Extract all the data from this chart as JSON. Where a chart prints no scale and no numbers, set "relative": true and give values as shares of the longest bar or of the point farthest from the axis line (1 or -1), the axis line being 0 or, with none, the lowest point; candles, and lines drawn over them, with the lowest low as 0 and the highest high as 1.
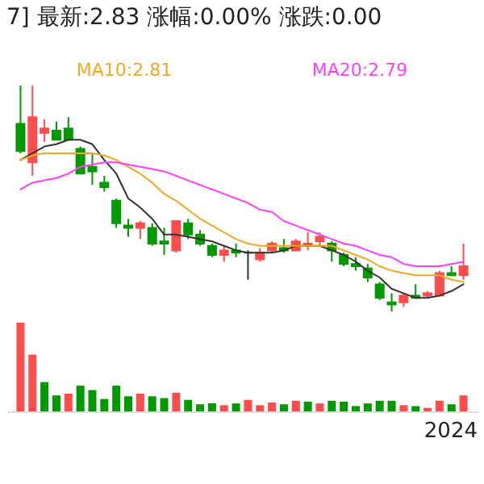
{
  "chart_data": [
    {
      "type": "candlestick",
      "title": "7]  最新:2.83  涨幅:0.00%  涨跌:0.00",
      "relative": true,
      "categories": [
        null,
        null,
        null,
        null,
        null,
        null,
        null,
        null,
        null,
        null,
        null,
        null,
        null,
        null,
        null,
        null,
        null,
        null,
        null,
        null,
        null,
        null,
        null,
        null,
        null,
        null,
        null,
        null,
        null,
        null,
        null,
        null,
        null,
        null,
        null,
        null,
        null,
        null
      ],
      "ohlc": [
        [
          0.83,
          1.0,
          0.7,
          0.71
        ],
        [
          0.66,
          1.0,
          0.6,
          0.86
        ],
        [
          0.79,
          0.85,
          0.75,
          0.81
        ],
        [
          0.8,
          0.84,
          0.76,
          0.76
        ],
        [
          0.81,
          0.86,
          0.76,
          0.76
        ],
        [
          0.72,
          0.73,
          0.61,
          0.61
        ],
        [
          0.64,
          0.7,
          0.56,
          0.62
        ],
        [
          0.57,
          0.6,
          0.53,
          0.55
        ],
        [
          0.49,
          0.5,
          0.37,
          0.39
        ],
        [
          0.38,
          0.41,
          0.33,
          0.37
        ],
        [
          0.37,
          0.4,
          0.32,
          0.39
        ],
        [
          0.37,
          0.39,
          0.29,
          0.3
        ],
        [
          0.31,
          0.37,
          0.25,
          0.3
        ],
        [
          0.27,
          0.4,
          0.26,
          0.4
        ],
        [
          0.39,
          0.41,
          0.32,
          0.34
        ],
        [
          0.34,
          0.36,
          0.29,
          0.3
        ],
        [
          0.29,
          0.3,
          0.24,
          0.25
        ],
        [
          0.25,
          0.29,
          0.22,
          0.27
        ],
        [
          0.27,
          0.3,
          0.24,
          0.26
        ],
        [
          0.26,
          0.27,
          0.14,
          0.26
        ],
        [
          0.23,
          0.28,
          0.22,
          0.26
        ],
        [
          0.27,
          0.31,
          0.26,
          0.3
        ],
        [
          0.28,
          0.32,
          0.26,
          0.27
        ],
        [
          0.27,
          0.32,
          0.27,
          0.31
        ],
        [
          0.29,
          0.35,
          0.27,
          0.3
        ],
        [
          0.31,
          0.35,
          0.29,
          0.33
        ],
        [
          0.3,
          0.31,
          0.22,
          0.27
        ],
        [
          0.25,
          0.26,
          0.2,
          0.21
        ],
        [
          0.21,
          0.24,
          0.18,
          0.2
        ],
        [
          0.19,
          0.21,
          0.13,
          0.15
        ],
        [
          0.12,
          0.13,
          0.05,
          0.06
        ],
        [
          0.04,
          0.08,
          0.0,
          0.03
        ],
        [
          0.04,
          0.08,
          0.02,
          0.07
        ],
        [
          0.07,
          0.12,
          0.06,
          0.06
        ],
        [
          0.07,
          0.09,
          0.06,
          0.08
        ],
        [
          0.07,
          0.18,
          0.07,
          0.17
        ],
        [
          0.17,
          0.2,
          0.16,
          0.16
        ],
        [
          0.16,
          0.3,
          0.14,
          0.2
        ]
      ],
      "colors": [
        "#009a00",
        "#ff4d4d",
        "#ff4d4d",
        "#009a00",
        "#009a00",
        "#009a00",
        "#009a00",
        "#009a00",
        "#009a00",
        "#009a00",
        "#ff4d4d",
        "#009a00",
        "#009a00",
        "#ff4d4d",
        "#009a00",
        "#009a00",
        "#009a00",
        "#ff4d4d",
        "#009a00",
        "#333333",
        "#ff4d4d",
        "#ff4d4d",
        "#009a00",
        "#ff4d4d",
        "#ff4d4d",
        "#ff4d4d",
        "#009a00",
        "#009a00",
        "#009a00",
        "#009a00",
        "#009a00",
        "#009a00",
        "#ff4d4d",
        "#009a00",
        "#ff4d4d",
        "#ff4d4d",
        "#009a00",
        "#ff4d4d"
      ],
      "series": [
        {
          "type": "line",
          "color": "#333333",
          "values": [
            0.67,
            0.7,
            0.73,
            0.74,
            0.76,
            0.76,
            0.74,
            0.67,
            0.61,
            0.5,
            0.46,
            0.41,
            0.34,
            0.34,
            0.33,
            0.32,
            0.31,
            0.29,
            0.27,
            0.26,
            0.26,
            0.26,
            0.27,
            0.29,
            0.29,
            0.29,
            0.27,
            0.25,
            0.22,
            0.18,
            0.15,
            0.1,
            0.08,
            0.06,
            0.06,
            0.07,
            0.09,
            0.12
          ]
        },
        {
          "type": "line",
          "name": "MA10:2.81",
          "color": "#f5a623",
          "values": [
            0.67,
            0.69,
            0.7,
            0.7,
            0.7,
            0.7,
            0.7,
            0.69,
            0.67,
            0.64,
            0.61,
            0.57,
            0.52,
            0.49,
            0.45,
            0.41,
            0.38,
            0.35,
            0.32,
            0.3,
            0.29,
            0.29,
            0.29,
            0.29,
            0.29,
            0.29,
            0.29,
            0.27,
            0.25,
            0.23,
            0.2,
            0.18,
            0.17,
            0.16,
            0.16,
            0.16,
            0.14,
            0.13
          ]
        },
        {
          "type": "line",
          "name": "MA20:2.79",
          "color": "#ff40ff",
          "values": [
            0.54,
            0.57,
            0.58,
            0.59,
            0.61,
            0.64,
            0.65,
            0.66,
            0.66,
            0.65,
            0.64,
            0.63,
            0.62,
            0.6,
            0.58,
            0.56,
            0.54,
            0.52,
            0.5,
            0.48,
            0.45,
            0.44,
            0.4,
            0.38,
            0.36,
            0.34,
            0.32,
            0.3,
            0.29,
            0.27,
            0.25,
            0.24,
            0.21,
            0.2,
            0.2,
            0.2,
            0.21,
            0.22
          ]
        }
      ]
    },
    {
      "type": "bar",
      "relative": true,
      "annotations": [
        "2024"
      ],
      "categories": [
        null,
        null,
        null,
        null,
        null,
        null,
        null,
        null,
        null,
        null,
        null,
        null,
        null,
        null,
        null,
        null,
        null,
        null,
        null,
        null,
        null,
        null,
        null,
        null,
        null,
        null,
        null,
        null,
        null,
        null,
        null,
        null,
        null,
        null,
        null,
        null,
        null,
        null
      ],
      "values": [
        1.0,
        0.64,
        0.33,
        0.18,
        0.2,
        0.29,
        0.24,
        0.14,
        0.29,
        0.17,
        0.2,
        0.17,
        0.15,
        0.21,
        0.13,
        0.08,
        0.09,
        0.07,
        0.09,
        0.13,
        0.07,
        0.1,
        0.08,
        0.12,
        0.11,
        0.09,
        0.12,
        0.11,
        0.06,
        0.09,
        0.12,
        0.12,
        0.07,
        0.06,
        0.04,
        0.12,
        0.08,
        0.18
      ],
      "colors": [
        "#ff4d4d",
        "#ff4d4d",
        "#009a00",
        "#009a00",
        "#ff4d4d",
        "#009a00",
        "#009a00",
        "#009a00",
        "#009a00",
        "#009a00",
        "#ff4d4d",
        "#009a00",
        "#009a00",
        "#ff4d4d",
        "#009a00",
        "#009a00",
        "#009a00",
        "#ff4d4d",
        "#009a00",
        "#ff4d4d",
        "#ff4d4d",
        "#ff4d4d",
        "#009a00",
        "#ff4d4d",
        "#009a00",
        "#ff4d4d",
        "#009a00",
        "#009a00",
        "#009a00",
        "#009a00",
        "#009a00",
        "#009a00",
        "#ff4d4d",
        "#009a00",
        "#ff4d4d",
        "#ff4d4d",
        "#009a00",
        "#ff4d4d"
      ]
    }
  ]
}
